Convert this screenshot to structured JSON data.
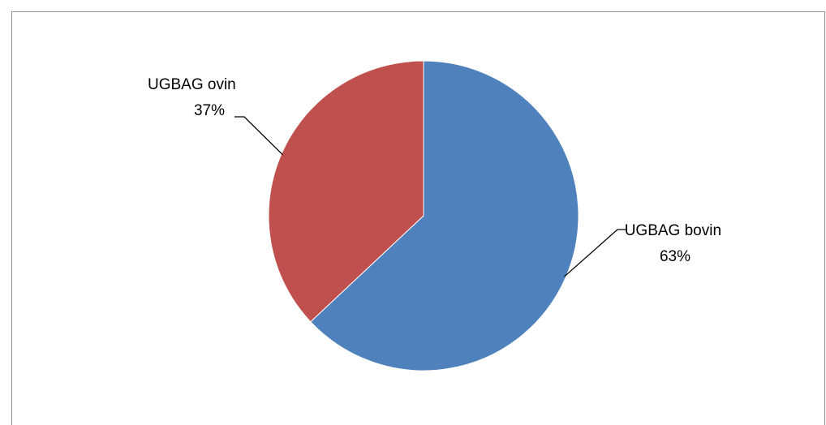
{
  "chart_data": {
    "type": "pie",
    "title": "",
    "legend": "none",
    "slices": [
      {
        "label": "UGBAG bovin",
        "percent_label": "63%",
        "value": 63,
        "color": "#4f81bd"
      },
      {
        "label": "UGBAG ovin",
        "percent_label": "37%",
        "value": 37,
        "color": "#c0504d"
      }
    ]
  }
}
